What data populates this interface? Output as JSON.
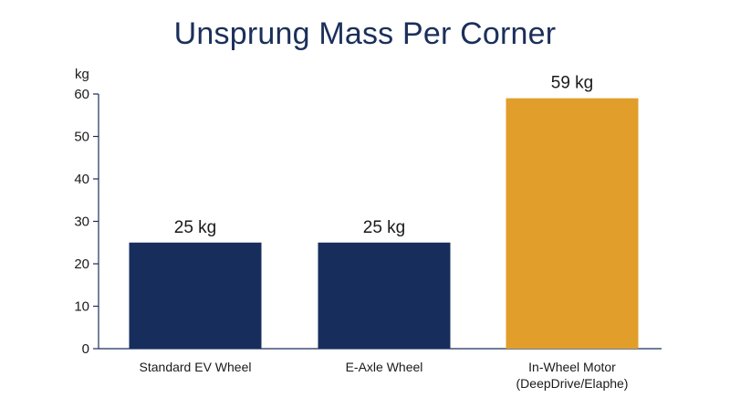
{
  "chart_data": {
    "type": "bar",
    "title": "Unsprung Mass Per Corner",
    "ylabel": "kg",
    "xlabel": "",
    "ylim": [
      0,
      60
    ],
    "yticks": [
      0,
      10,
      20,
      30,
      40,
      50,
      60
    ],
    "categories": [
      [
        "Standard EV Wheel"
      ],
      [
        "E-Axle Wheel"
      ],
      [
        "In-Wheel Motor",
        "(DeepDrive/Elaphe)"
      ]
    ],
    "values": [
      25,
      25,
      59
    ],
    "data_labels": [
      "25 kg",
      "25 kg",
      "59 kg"
    ],
    "colors": [
      "#172e5c",
      "#172e5c",
      "#e29e2a"
    ],
    "grid": false,
    "legend": "none"
  }
}
